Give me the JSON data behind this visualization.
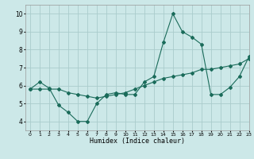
{
  "title": "",
  "xlabel": "Humidex (Indice chaleur)",
  "ylabel": "",
  "bg_color": "#cce8e8",
  "grid_color": "#aacccc",
  "line_color": "#1a6b5a",
  "xlim": [
    -0.5,
    23
  ],
  "ylim": [
    3.5,
    10.5
  ],
  "xticks": [
    0,
    1,
    2,
    3,
    4,
    5,
    6,
    7,
    8,
    9,
    10,
    11,
    12,
    13,
    14,
    15,
    16,
    17,
    18,
    19,
    20,
    21,
    22,
    23
  ],
  "yticks": [
    4,
    5,
    6,
    7,
    8,
    9,
    10
  ],
  "line1_x": [
    0,
    1,
    2,
    3,
    4,
    5,
    6,
    7,
    8,
    9,
    10,
    11,
    12,
    13,
    14,
    15,
    16,
    17,
    18,
    19,
    20,
    21,
    22,
    23
  ],
  "line1_y": [
    5.8,
    6.2,
    5.85,
    4.9,
    4.5,
    4.0,
    4.0,
    5.0,
    5.5,
    5.6,
    5.5,
    5.5,
    6.2,
    6.5,
    8.4,
    10.0,
    9.0,
    8.7,
    8.3,
    5.5,
    5.5,
    5.9,
    6.5,
    7.6
  ],
  "line2_x": [
    0,
    1,
    2,
    3,
    4,
    5,
    6,
    7,
    8,
    9,
    10,
    11,
    12,
    13,
    14,
    15,
    16,
    17,
    18,
    19,
    20,
    21,
    22,
    23
  ],
  "line2_y": [
    5.8,
    5.8,
    5.8,
    5.8,
    5.6,
    5.5,
    5.4,
    5.3,
    5.4,
    5.5,
    5.6,
    5.8,
    6.0,
    6.2,
    6.4,
    6.5,
    6.6,
    6.7,
    6.9,
    6.9,
    7.0,
    7.1,
    7.2,
    7.5
  ]
}
